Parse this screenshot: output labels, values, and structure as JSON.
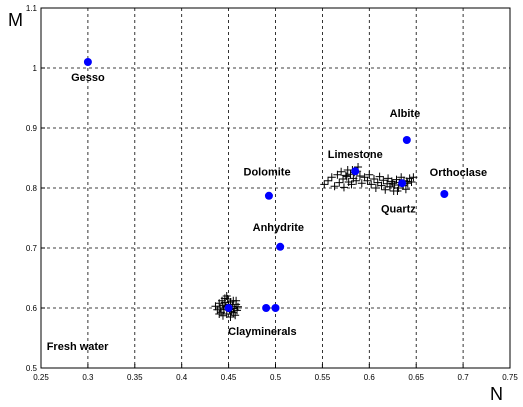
{
  "chart_data": {
    "type": "scatter",
    "title": "",
    "xlabel": "N",
    "ylabel": "M",
    "xlim": [
      0.25,
      0.75
    ],
    "ylim": [
      0.5,
      1.1
    ],
    "xticks": [
      "0.25",
      "0.3",
      "0.35",
      "0.4",
      "0.45",
      "0.5",
      "0.55",
      "0.6",
      "0.65",
      "0.7",
      "0.75"
    ],
    "yticks": [
      "0.5",
      "0.6",
      "0.7",
      "0.8",
      "0.9",
      "1",
      "1.1"
    ],
    "grid": true,
    "colors": {
      "minerals": "#0000ff",
      "samples": "#000000"
    },
    "minerals": [
      {
        "name": "Gesso",
        "x": 0.3,
        "y": 1.01
      },
      {
        "name": "Albite",
        "x": 0.64,
        "y": 0.88
      },
      {
        "name": "Limestone",
        "x": 0.585,
        "y": 0.828
      },
      {
        "name": "Dolomite",
        "x": 0.493,
        "y": 0.787
      },
      {
        "name": "Orthoclase",
        "x": 0.68,
        "y": 0.79
      },
      {
        "name": "Quartz",
        "x": 0.635,
        "y": 0.808
      },
      {
        "name": "Anhydrite",
        "x": 0.505,
        "y": 0.702
      },
      {
        "name": "Clayminerals",
        "x": 0.45,
        "y": 0.6
      },
      {
        "name": "Clayminerals",
        "x": 0.49,
        "y": 0.6
      },
      {
        "name": "Clayminerals",
        "x": 0.5,
        "y": 0.6
      }
    ],
    "labels": [
      {
        "text": "Gesso",
        "x": 0.3,
        "y": 0.978
      },
      {
        "text": "Albite",
        "x": 0.638,
        "y": 0.918
      },
      {
        "text": "Limestone",
        "x": 0.585,
        "y": 0.85
      },
      {
        "text": "Dolomite",
        "x": 0.491,
        "y": 0.821
      },
      {
        "text": "Orthoclase",
        "x": 0.695,
        "y": 0.82
      },
      {
        "text": "Quartz",
        "x": 0.631,
        "y": 0.759
      },
      {
        "text": "Anhydrite",
        "x": 0.503,
        "y": 0.728
      },
      {
        "text": "Clayminerals",
        "x": 0.486,
        "y": 0.555
      },
      {
        "text": "Fresh water",
        "x": 0.289,
        "y": 0.53
      }
    ],
    "samples": [
      [
        0.552,
        0.806
      ],
      [
        0.556,
        0.812
      ],
      [
        0.56,
        0.818
      ],
      [
        0.563,
        0.803
      ],
      [
        0.566,
        0.822
      ],
      [
        0.568,
        0.809
      ],
      [
        0.57,
        0.827
      ],
      [
        0.572,
        0.815
      ],
      [
        0.573,
        0.801
      ],
      [
        0.575,
        0.821
      ],
      [
        0.577,
        0.83
      ],
      [
        0.578,
        0.81
      ],
      [
        0.58,
        0.823
      ],
      [
        0.581,
        0.806
      ],
      [
        0.583,
        0.816
      ],
      [
        0.584,
        0.826
      ],
      [
        0.586,
        0.812
      ],
      [
        0.588,
        0.835
      ],
      [
        0.59,
        0.82
      ],
      [
        0.592,
        0.808
      ],
      [
        0.595,
        0.818
      ],
      [
        0.598,
        0.812
      ],
      [
        0.6,
        0.822
      ],
      [
        0.602,
        0.806
      ],
      [
        0.605,
        0.815
      ],
      [
        0.607,
        0.8
      ],
      [
        0.609,
        0.809
      ],
      [
        0.611,
        0.819
      ],
      [
        0.613,
        0.804
      ],
      [
        0.615,
        0.813
      ],
      [
        0.617,
        0.797
      ],
      [
        0.619,
        0.807
      ],
      [
        0.62,
        0.816
      ],
      [
        0.622,
        0.802
      ],
      [
        0.624,
        0.811
      ],
      [
        0.626,
        0.795
      ],
      [
        0.627,
        0.805
      ],
      [
        0.629,
        0.814
      ],
      [
        0.631,
        0.8
      ],
      [
        0.632,
        0.809
      ],
      [
        0.634,
        0.818
      ],
      [
        0.636,
        0.804
      ],
      [
        0.637,
        0.812
      ],
      [
        0.639,
        0.798
      ],
      [
        0.641,
        0.808
      ],
      [
        0.643,
        0.816
      ],
      [
        0.645,
        0.81
      ],
      [
        0.647,
        0.818
      ],
      [
        0.576,
        0.819
      ],
      [
        0.582,
        0.83
      ],
      [
        0.587,
        0.828
      ],
      [
        0.625,
        0.808
      ],
      [
        0.63,
        0.795
      ],
      [
        0.64,
        0.811
      ],
      [
        0.436,
        0.603
      ],
      [
        0.438,
        0.597
      ],
      [
        0.44,
        0.608
      ],
      [
        0.441,
        0.6
      ],
      [
        0.442,
        0.593
      ],
      [
        0.443,
        0.612
      ],
      [
        0.444,
        0.604
      ],
      [
        0.445,
        0.597
      ],
      [
        0.446,
        0.609
      ],
      [
        0.447,
        0.602
      ],
      [
        0.448,
        0.59
      ],
      [
        0.449,
        0.615
      ],
      [
        0.45,
        0.606
      ],
      [
        0.451,
        0.598
      ],
      [
        0.452,
        0.61
      ],
      [
        0.453,
        0.594
      ],
      [
        0.454,
        0.603
      ],
      [
        0.455,
        0.612
      ],
      [
        0.456,
        0.599
      ],
      [
        0.457,
        0.588
      ],
      [
        0.458,
        0.606
      ],
      [
        0.459,
        0.596
      ],
      [
        0.46,
        0.602
      ],
      [
        0.444,
        0.587
      ],
      [
        0.452,
        0.585
      ],
      [
        0.448,
        0.62
      ],
      [
        0.44,
        0.59
      ],
      [
        0.455,
        0.592
      ],
      [
        0.446,
        0.616
      ],
      [
        0.458,
        0.612
      ]
    ]
  }
}
